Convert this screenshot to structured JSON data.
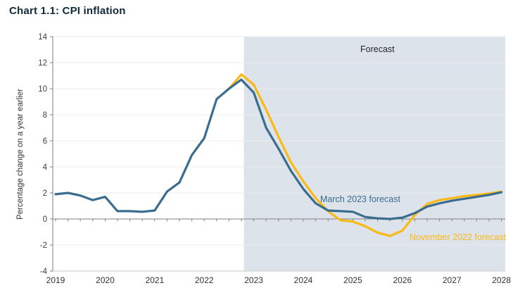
{
  "title": "Chart 1.1: CPI inflation",
  "chart_data": {
    "type": "line",
    "title": "Chart 1.1: CPI inflation",
    "xlabel": "",
    "ylabel": "Percentage change on a year earlier",
    "ylim": [
      -4,
      14
    ],
    "y_ticks": [
      14,
      12,
      10,
      8,
      6,
      4,
      2,
      0,
      -2,
      -4
    ],
    "x_years": [
      2019,
      2020,
      2021,
      2022,
      2023,
      2024,
      2025,
      2026,
      2027,
      2028
    ],
    "xlim": [
      2019,
      2028.08
    ],
    "grid": "horizontal-light",
    "legend_position": "inline-annotations",
    "forecast_region": {
      "label": "Forecast",
      "x_start": 2022.8,
      "x_end": 2028.08,
      "fill": "#dce3eb"
    },
    "series": [
      {
        "name": "November 2022 forecast",
        "color": "#fbb917",
        "x": [
          2022.5,
          2022.75,
          2023,
          2023.25,
          2023.5,
          2023.75,
          2024,
          2024.25,
          2024.5,
          2024.75,
          2025,
          2025.25,
          2025.5,
          2025.75,
          2026,
          2026.25,
          2026.5,
          2026.75,
          2027,
          2027.25,
          2027.5,
          2027.75,
          2028
        ],
        "values": [
          10.0,
          11.1,
          10.3,
          8.4,
          6.3,
          4.35,
          2.9,
          1.6,
          0.6,
          -0.1,
          -0.2,
          -0.55,
          -1.05,
          -1.3,
          -0.9,
          0.3,
          1.15,
          1.45,
          1.6,
          1.75,
          1.85,
          1.95,
          2.1
        ]
      },
      {
        "name": "March 2023 forecast",
        "color": "#3a6c90",
        "x": [
          2019,
          2019.25,
          2019.5,
          2019.75,
          2020,
          2020.25,
          2020.5,
          2020.75,
          2021,
          2021.25,
          2021.5,
          2021.75,
          2022,
          2022.25,
          2022.5,
          2022.75,
          2023,
          2023.25,
          2023.5,
          2023.75,
          2024,
          2024.25,
          2024.5,
          2024.75,
          2025,
          2025.25,
          2025.5,
          2025.75,
          2026,
          2026.25,
          2026.5,
          2026.75,
          2027,
          2027.25,
          2027.5,
          2027.75,
          2028
        ],
        "values": [
          1.9,
          2.0,
          1.8,
          1.45,
          1.7,
          0.6,
          0.6,
          0.55,
          0.65,
          2.1,
          2.8,
          4.9,
          6.2,
          9.2,
          10.0,
          10.7,
          9.7,
          7.0,
          5.4,
          3.7,
          2.3,
          1.2,
          0.65,
          0.6,
          0.55,
          0.15,
          0.05,
          0.0,
          0.1,
          0.45,
          0.95,
          1.2,
          1.4,
          1.55,
          1.7,
          1.85,
          2.05
        ]
      }
    ],
    "annotations": [
      "Forecast",
      "March 2023 forecast",
      "November 2022 forecast"
    ]
  },
  "colors": {
    "march_line": "#3a6c90",
    "november_line": "#fbb917",
    "forecast_fill": "#dce3eb",
    "axis": "#7f7f7f",
    "gridline": "#ececec",
    "bottom_border": "#cccccc",
    "title_text": "#0e2a3a",
    "tick_label": "#404040",
    "year_label": "#333333"
  }
}
